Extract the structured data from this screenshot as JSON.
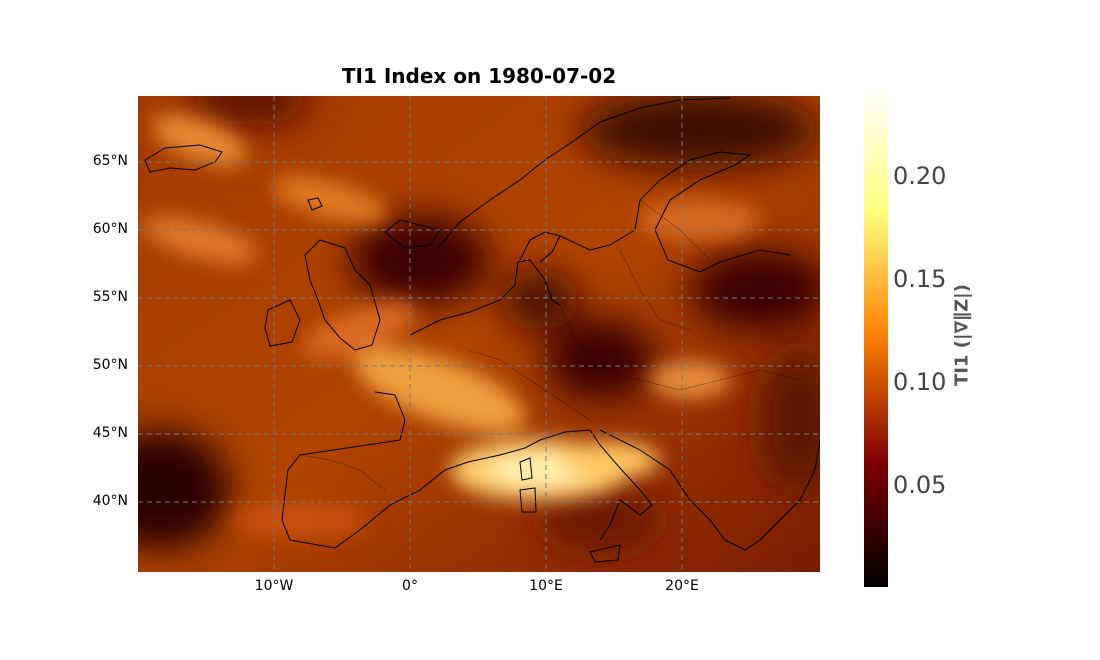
{
  "title": "TI1 Index on 1980-07-02",
  "map": {
    "projection": "PlateCarree",
    "lon_range": [
      -20,
      30
    ],
    "lat_range": [
      35,
      70
    ],
    "colormap": "afmhot",
    "gridlines": "dashed gray",
    "lat_ticks": [
      "65°N",
      "60°N",
      "55°N",
      "50°N",
      "45°N",
      "40°N"
    ],
    "lon_ticks": [
      "10°W",
      "0°",
      "10°E",
      "20°E"
    ]
  },
  "colorbar": {
    "label": "TI1 (|∇∥Z|)",
    "range": [
      0.0,
      0.24
    ],
    "ticks": [
      "0.20",
      "0.15",
      "0.10",
      "0.05"
    ]
  }
}
